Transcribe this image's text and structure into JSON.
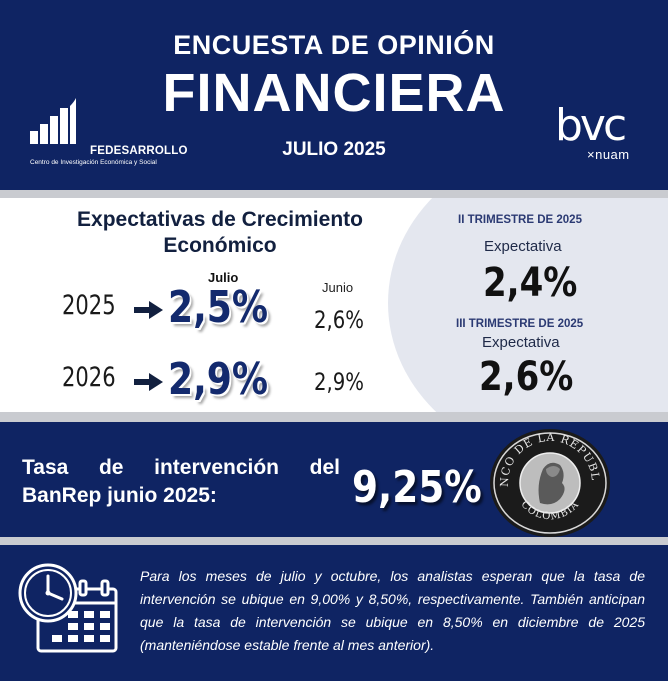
{
  "header": {
    "title_line1": "ENCUESTA DE OPINIÓN",
    "title_line2": "FINANCIERA",
    "date": "JULIO 2025",
    "fedesarrollo_name": "FEDESARROLLO",
    "fedesarrollo_sub": "Centro de Investigación Económica y Social",
    "bvc_logo_text": "bvc",
    "bvc_sub": "×nuam"
  },
  "growth": {
    "title_line1": "Expectativas de Crecimiento",
    "title_line2": "Económico",
    "label_current": "Julio",
    "label_previous": "Junio",
    "rows": [
      {
        "year": "2025",
        "current": "2,5%",
        "previous": "2,6%"
      },
      {
        "year": "2026",
        "current": "2,9%",
        "previous": "2,9%"
      }
    ]
  },
  "quarters": [
    {
      "title": "II TRIMESTRE DE 2025",
      "label": "Expectativa",
      "value": "2,4%"
    },
    {
      "title": "III TRIMESTRE DE 2025",
      "label": "Expectativa",
      "value": "2,6%"
    }
  ],
  "rate": {
    "text_line1": "Tasa de intervención del",
    "text_line2": "BanRep junio 2025:",
    "value": "9,25%",
    "seal_top": "BANCO DE LA REPUBLICA",
    "seal_bottom": "COLOMBIA"
  },
  "note": {
    "text": "Para los meses de julio y octubre, los analistas esperan que la tasa de intervención se ubique en 9,00% y 8,50%, respectivamente. También anticipan que la tasa de intervención se ubique en 8,50% en diciembre de 2025 (manteniéndose estable frente al mes anterior)."
  },
  "colors": {
    "navy": "#0f2463",
    "gray_bar": "#c9cbd0",
    "circle": "#e4e7ef",
    "value_blue": "#132a6e"
  },
  "icons": [
    "fedesarrollo-logo-icon",
    "arrow-right-icon",
    "banrep-seal-icon",
    "clock-icon",
    "calendar-icon"
  ]
}
